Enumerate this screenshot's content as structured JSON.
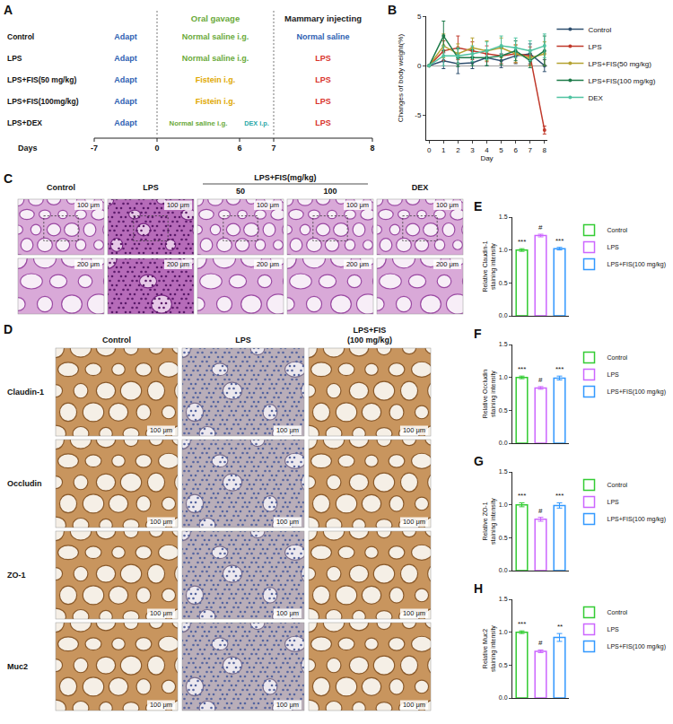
{
  "panels": {
    "A": {
      "letter": "A",
      "headers": [
        {
          "text": "Oral gavage",
          "color": "#6aaa3a",
          "from": 0,
          "to": 7
        },
        {
          "text": "Mammary injecting",
          "color": "#222222",
          "from": 7,
          "to": 8
        }
      ],
      "rows": [
        {
          "label": "Control",
          "segments": [
            {
              "text": "Adapt",
              "color": "#2f5fb3",
              "from": -7,
              "to": 0
            },
            {
              "text": "Normal saline i.g.",
              "color": "#6aaa3a",
              "from": 0,
              "to": 7
            },
            {
              "text": "Normal saline",
              "color": "#2f5fb3",
              "from": 7,
              "to": 8
            }
          ]
        },
        {
          "label": "LPS",
          "segments": [
            {
              "text": "Adapt",
              "color": "#2f5fb3",
              "from": -7,
              "to": 0
            },
            {
              "text": "Normal saline i.g.",
              "color": "#6aaa3a",
              "from": 0,
              "to": 7
            },
            {
              "text": "LPS",
              "color": "#d9342b",
              "from": 7,
              "to": 8
            }
          ]
        },
        {
          "label": "LPS+FIS(50 mg/kg)",
          "segments": [
            {
              "text": "Adapt",
              "color": "#2f5fb3",
              "from": -7,
              "to": 0
            },
            {
              "text": "Fistein i.g.",
              "color": "#e0a800",
              "from": 0,
              "to": 7
            },
            {
              "text": "LPS",
              "color": "#d9342b",
              "from": 7,
              "to": 8
            }
          ]
        },
        {
          "label": "LPS+FIS(100mg/kg)",
          "segments": [
            {
              "text": "Adapt",
              "color": "#2f5fb3",
              "from": -7,
              "to": 0
            },
            {
              "text": "Fistein i.g.",
              "color": "#e0a800",
              "from": 0,
              "to": 7
            },
            {
              "text": "LPS",
              "color": "#d9342b",
              "from": 7,
              "to": 8
            }
          ]
        },
        {
          "label": "LPS+DEX",
          "segments": [
            {
              "text": "Adapt",
              "color": "#2f5fb3",
              "from": -7,
              "to": 0
            },
            {
              "text": "Normal saline i.g.",
              "color": "#6aaa3a",
              "from": 0,
              "to": 6
            },
            {
              "text": "DEX i.p.",
              "color": "#2aa8a8",
              "from": 6,
              "to": 7
            },
            {
              "text": "LPS",
              "color": "#d9342b",
              "from": 7,
              "to": 8
            }
          ]
        }
      ],
      "axis": {
        "label": "Days",
        "ticks": [
          -7,
          0,
          6,
          7,
          8
        ]
      }
    },
    "C": {
      "letter": "C",
      "columns": [
        "Control",
        "LPS",
        "50",
        "100",
        "DEX"
      ],
      "group": {
        "label": "LPS+FIS(mg/kg)",
        "columns": [
          "50",
          "100"
        ]
      },
      "scale_bars": [
        "100 μm",
        "200 μm"
      ]
    },
    "D": {
      "letter": "D",
      "columns": [
        "Control",
        "LPS",
        "LPS+FIS (100 mg/kg)"
      ],
      "rows": [
        "Claudin-1",
        "Occludin",
        "ZO-1",
        "Muc2"
      ],
      "scale_bar": "100 μm"
    }
  },
  "chart_data": [
    {
      "panel": "B",
      "type": "line",
      "x": [
        0,
        1,
        2,
        3,
        4,
        5,
        6,
        7,
        8
      ],
      "xlabel": "Day",
      "ylabel": "Changes of body weight(%)",
      "xlim": [
        -0.2,
        8.2
      ],
      "xticks": [
        0,
        1,
        2,
        3,
        4,
        5,
        6,
        7,
        8
      ],
      "ylim": [
        -7.5,
        5
      ],
      "yticks": [
        -5,
        0,
        5
      ],
      "grid": false,
      "legend": "right",
      "marker": "circle",
      "series": [
        {
          "name": "Control",
          "color": "#2f4f6f",
          "values": [
            0,
            0.5,
            0.2,
            0.3,
            0.8,
            0.5,
            1.0,
            1.2,
            0.0
          ],
          "errors": [
            0,
            0.8,
            1.0,
            0.6,
            0.8,
            0.7,
            0.8,
            1.0,
            0.6
          ]
        },
        {
          "name": "LPS",
          "color": "#c0392b",
          "values": [
            0,
            1.5,
            1.8,
            1.5,
            1.2,
            1.0,
            1.2,
            1.0,
            -6.5
          ],
          "errors": [
            0,
            1.0,
            1.2,
            0.9,
            0.8,
            0.8,
            0.9,
            0.9,
            0.4
          ]
        },
        {
          "name": "LPS+FIS(50 mg/kg)",
          "color": "#b5a231",
          "values": [
            0,
            2.0,
            1.2,
            1.8,
            1.5,
            1.8,
            1.2,
            0.8,
            1.2
          ],
          "errors": [
            0,
            1.2,
            1.0,
            1.0,
            1.0,
            1.0,
            0.9,
            0.8,
            1.2
          ]
        },
        {
          "name": "LPS+FIS(100 mg/kg)",
          "color": "#1e7b4a",
          "values": [
            0,
            3.0,
            0.8,
            0.8,
            0.8,
            1.0,
            1.5,
            0.5,
            1.5
          ],
          "errors": [
            0,
            1.5,
            0.9,
            0.8,
            0.8,
            0.9,
            1.0,
            0.7,
            1.5
          ]
        },
        {
          "name": "DEX",
          "color": "#4fc3a1",
          "values": [
            0,
            1.0,
            1.0,
            1.2,
            1.5,
            2.0,
            1.8,
            1.5,
            2.0
          ],
          "errors": [
            0,
            1.0,
            0.8,
            0.8,
            0.9,
            1.0,
            1.0,
            1.0,
            1.2
          ]
        }
      ]
    },
    {
      "panel": "E",
      "type": "bar",
      "categories": [
        "Control",
        "LPS",
        "LPS+FIS(100 mg/kg)"
      ],
      "values": [
        1.0,
        1.22,
        1.02
      ],
      "errors": [
        0.02,
        0.02,
        0.02
      ],
      "significance": [
        "***",
        "#",
        "***"
      ],
      "colors": [
        "#33cc33",
        "#cc66ff",
        "#3399ff"
      ],
      "ylabel": "Relative Claudin-1 staining intensity",
      "ylim": [
        0,
        1.5
      ],
      "yticks": [
        {
          "value": 0,
          "label": "0.0"
        },
        0.5,
        {
          "value": 1,
          "label": "1.0"
        },
        1.5
      ],
      "tick_labels": "y",
      "legend": "right",
      "grid": false
    },
    {
      "panel": "F",
      "type": "bar",
      "categories": [
        "Control",
        "LPS",
        "LPS+FIS(100 mg/kg)"
      ],
      "values": [
        1.0,
        0.84,
        0.99
      ],
      "errors": [
        0.02,
        0.02,
        0.03
      ],
      "significance": [
        "***",
        "#",
        "***"
      ],
      "colors": [
        "#33cc33",
        "#cc66ff",
        "#3399ff"
      ],
      "ylabel": "Relative Occludin staining intensity",
      "ylim": [
        0,
        1.5
      ],
      "yticks": [
        {
          "value": 0,
          "label": "0.0"
        },
        0.5,
        {
          "value": 1,
          "label": "1.0"
        },
        1.5
      ],
      "tick_labels": "y",
      "legend": "right",
      "grid": false
    },
    {
      "panel": "G",
      "type": "bar",
      "categories": [
        "Control",
        "LPS",
        "LPS+FIS(100 mg/kg)"
      ],
      "values": [
        1.0,
        0.78,
        0.99
      ],
      "errors": [
        0.03,
        0.03,
        0.04
      ],
      "significance": [
        "***",
        "#",
        "***"
      ],
      "colors": [
        "#33cc33",
        "#cc66ff",
        "#3399ff"
      ],
      "ylabel": "Relative ZO-1 staining intensity",
      "ylim": [
        0,
        1.5
      ],
      "yticks": [
        {
          "value": 0,
          "label": "0.0"
        },
        0.5,
        {
          "value": 1,
          "label": "1.0"
        },
        1.5
      ],
      "tick_labels": "y",
      "legend": "right",
      "grid": false
    },
    {
      "panel": "H",
      "type": "bar",
      "categories": [
        "Control",
        "LPS",
        "LPS+FIS(100 mg/kg)"
      ],
      "values": [
        1.0,
        0.71,
        0.92
      ],
      "errors": [
        0.02,
        0.02,
        0.06
      ],
      "significance": [
        "***",
        "#",
        "**"
      ],
      "colors": [
        "#33cc33",
        "#cc66ff",
        "#3399ff"
      ],
      "ylabel": "Relative Muc2 staining intensity",
      "ylim": [
        0,
        1.5
      ],
      "yticks": [
        {
          "value": 0,
          "label": "0.0"
        },
        0.5,
        {
          "value": 1,
          "label": "1.0"
        },
        1.5
      ],
      "tick_labels": "y",
      "legend": "right",
      "grid": false
    }
  ]
}
